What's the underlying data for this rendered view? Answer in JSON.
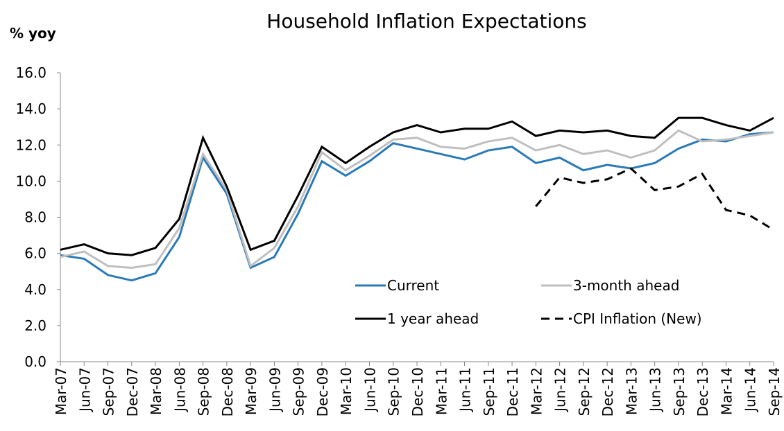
{
  "chart_data": {
    "type": "line",
    "title": "Household Inflation Expectations",
    "y_label": "% yoy",
    "categories": [
      "Mar-07",
      "Jun-07",
      "Sep-07",
      "Dec-07",
      "Mar-08",
      "Jun-08",
      "Sep-08",
      "Dec-08",
      "Mar-09",
      "Jun-09",
      "Sep-09",
      "Dec-09",
      "Mar-10",
      "Jun-10",
      "Sep-10",
      "Dec-10",
      "Mar-11",
      "Jun-11",
      "Sep-11",
      "Dec-11",
      "Mar-12",
      "Jun-12",
      "Sep-12",
      "Dec-12",
      "Mar-13",
      "Jun-13",
      "Sep-13",
      "Dec-13",
      "Mar-14",
      "Jun-14",
      "Sep-14"
    ],
    "series": [
      {
        "name": "Current",
        "color": "#2a7ab8",
        "dash": false,
        "values": [
          5.9,
          5.7,
          4.8,
          4.5,
          4.9,
          6.9,
          11.3,
          9.3,
          5.2,
          5.8,
          8.2,
          11.1,
          10.3,
          11.1,
          12.1,
          11.8,
          11.5,
          11.2,
          11.7,
          11.9,
          11.0,
          11.3,
          10.6,
          10.9,
          10.7,
          11.0,
          11.8,
          12.3,
          12.2,
          12.6,
          12.7
        ]
      },
      {
        "name": "3-month ahead",
        "color": "#bfbfbf",
        "dash": false,
        "values": [
          5.8,
          6.1,
          5.3,
          5.2,
          5.4,
          7.4,
          11.5,
          9.5,
          5.3,
          6.3,
          8.6,
          11.6,
          10.6,
          11.4,
          12.3,
          12.4,
          11.9,
          11.8,
          12.2,
          12.4,
          11.7,
          12.0,
          11.5,
          11.7,
          11.3,
          11.7,
          12.8,
          12.2,
          12.3,
          12.5,
          12.7
        ]
      },
      {
        "name": "1 year ahead",
        "color": "#000000",
        "dash": false,
        "values": [
          6.2,
          6.5,
          6.0,
          5.9,
          6.3,
          7.9,
          12.4,
          9.7,
          6.2,
          6.7,
          9.2,
          11.9,
          11.0,
          11.9,
          12.7,
          13.1,
          12.7,
          12.9,
          12.9,
          13.3,
          12.5,
          12.8,
          12.7,
          12.8,
          12.5,
          12.4,
          13.5,
          13.5,
          13.1,
          12.8,
          13.5
        ]
      },
      {
        "name": "CPI Inflation (New)",
        "color": "#000000",
        "dash": true,
        "values": [
          null,
          null,
          null,
          null,
          null,
          null,
          null,
          null,
          null,
          null,
          null,
          null,
          null,
          null,
          null,
          null,
          null,
          null,
          null,
          null,
          8.6,
          10.2,
          9.9,
          10.1,
          10.7,
          9.5,
          9.7,
          10.4,
          8.4,
          8.1,
          7.3
        ]
      }
    ],
    "ylim": [
      0,
      16
    ],
    "yticks": [
      {
        "value": 0,
        "label": "0.0"
      },
      {
        "value": 2,
        "label": "2.0"
      },
      {
        "value": 4,
        "label": "4.0"
      },
      {
        "value": 6,
        "label": "6.0"
      },
      {
        "value": 8,
        "label": "8.0"
      },
      {
        "value": 10,
        "label": "10.0"
      },
      {
        "value": 12,
        "label": "12.0"
      },
      {
        "value": 14,
        "label": "14.0"
      },
      {
        "value": 16,
        "label": "16.0"
      }
    ],
    "grid": false
  }
}
